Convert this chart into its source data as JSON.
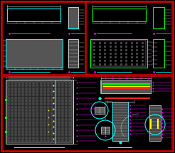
{
  "bg_color": "#000000",
  "border_color": "#cc0000",
  "cyan": "#00ffff",
  "green": "#00ff00",
  "magenta": "#ff00ff",
  "white": "#cccccc",
  "bright_white": "#ffffff",
  "gray_fill": "#555555",
  "dark_gray": "#2a2a2a",
  "mid_gray": "#444444",
  "yellow": "#ffff00",
  "red": "#ff2222",
  "fig_width": 2.46,
  "fig_height": 2.15,
  "dpi": 100
}
